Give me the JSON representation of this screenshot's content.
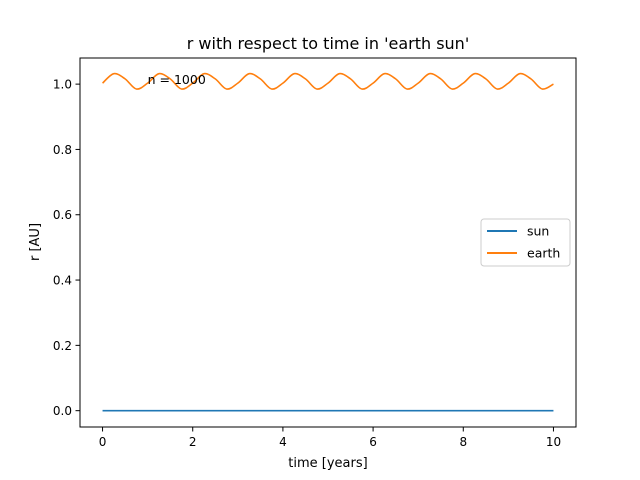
{
  "chart_data": {
    "type": "line",
    "title": "r with respect to time in 'earth sun'",
    "xlabel": "time [years]",
    "ylabel": "r [AU]",
    "xlim": [
      -0.5,
      10.5
    ],
    "ylim": [
      -0.05,
      1.08
    ],
    "xticks": [
      0,
      2,
      4,
      6,
      8,
      10
    ],
    "xtick_labels": [
      "0",
      "2",
      "4",
      "6",
      "8",
      "10"
    ],
    "yticks": [
      0.0,
      0.2,
      0.4,
      0.6,
      0.8,
      1.0
    ],
    "ytick_labels": [
      "0.0",
      "0.2",
      "0.4",
      "0.6",
      "0.8",
      "1.0"
    ],
    "grid": false,
    "legend_position": "center-right",
    "annotation": {
      "text": "n = 1000",
      "x": 1.0,
      "y": 1.0
    },
    "series": [
      {
        "name": "sun",
        "color": "#1f77b4",
        "x": [
          0,
          10
        ],
        "y": [
          0.0,
          0.0
        ]
      },
      {
        "name": "earth",
        "color": "#ff7f0e",
        "x": [
          0,
          0.25,
          0.5,
          0.75,
          1.0,
          1.25,
          1.5,
          1.75,
          2.0,
          2.25,
          2.5,
          2.75,
          3.0,
          3.25,
          3.5,
          3.75,
          4.0,
          4.25,
          4.5,
          4.75,
          5.0,
          5.25,
          5.5,
          5.75,
          6.0,
          6.25,
          6.5,
          6.75,
          7.0,
          7.25,
          7.5,
          7.75,
          8.0,
          8.25,
          8.5,
          8.75,
          9.0,
          9.25,
          9.5,
          9.75,
          10.0
        ],
        "y": [
          1.003,
          1.032,
          1.016,
          0.985,
          1.003,
          1.032,
          1.016,
          0.985,
          1.003,
          1.032,
          1.016,
          0.985,
          1.003,
          1.032,
          1.016,
          0.985,
          1.003,
          1.032,
          1.016,
          0.985,
          1.003,
          1.032,
          1.016,
          0.985,
          1.003,
          1.032,
          1.016,
          0.985,
          1.003,
          1.032,
          1.016,
          0.985,
          1.003,
          1.032,
          1.016,
          0.985,
          1.003,
          1.032,
          1.016,
          0.985,
          1.0
        ]
      }
    ]
  }
}
